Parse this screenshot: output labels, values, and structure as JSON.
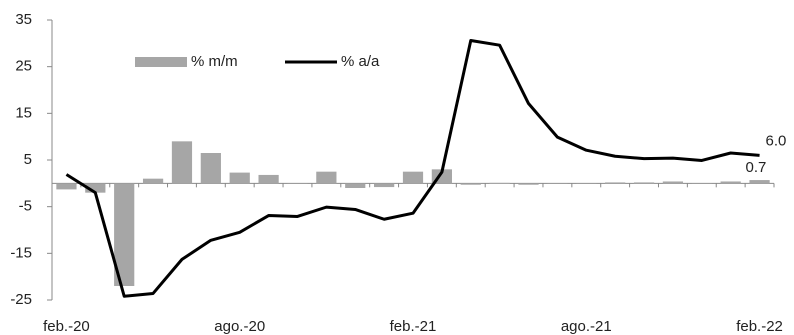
{
  "chart_data": {
    "type": "bar-line",
    "categories": [
      "feb.-20",
      null,
      null,
      null,
      null,
      null,
      "ago.-20",
      null,
      null,
      null,
      null,
      null,
      "feb.-21",
      null,
      null,
      null,
      null,
      null,
      "ago.-21",
      null,
      null,
      null,
      null,
      null,
      "feb.-22"
    ],
    "series": [
      {
        "name": "% m/m",
        "type": "bar",
        "color": "#a6a6a6",
        "values": [
          -1.3,
          -2,
          -22,
          1,
          9,
          6.5,
          2.3,
          1.8,
          0,
          2.5,
          -1,
          -0.8,
          2.5,
          3,
          -0.3,
          0.1,
          -0.3,
          0,
          0,
          0.2,
          0.2,
          0.4,
          0,
          0.4,
          0.7
        ],
        "value_labels": [
          null,
          null,
          null,
          null,
          null,
          null,
          null,
          null,
          null,
          null,
          null,
          null,
          null,
          null,
          null,
          null,
          null,
          null,
          null,
          null,
          null,
          null,
          null,
          null,
          "0.7"
        ]
      },
      {
        "name": "% a/a",
        "type": "line",
        "color": "#000000",
        "values": [
          1.9,
          -2,
          -24.2,
          -23.6,
          -16.3,
          -12.2,
          -10.5,
          -6.9,
          -7.1,
          -5.1,
          -5.6,
          -7.7,
          -6.4,
          2.4,
          30.6,
          29.6,
          17.1,
          9.9,
          7.1,
          5.8,
          5.3,
          5.4,
          4.9,
          6.5,
          6.0
        ],
        "value_labels": [
          null,
          null,
          null,
          null,
          null,
          null,
          null,
          null,
          null,
          null,
          null,
          null,
          null,
          null,
          null,
          null,
          null,
          null,
          null,
          null,
          null,
          null,
          null,
          null,
          "6.0"
        ]
      }
    ],
    "ylim": [
      -25,
      35
    ],
    "yticks": [
      -25,
      -15,
      -5,
      5,
      15,
      25,
      35
    ]
  }
}
